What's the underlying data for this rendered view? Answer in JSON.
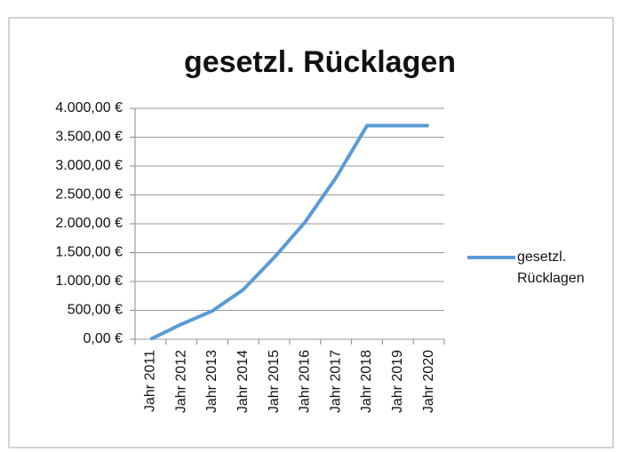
{
  "chart_data": {
    "type": "line",
    "title": "gesetzl. Rücklagen",
    "categories": [
      "Jahr 2011",
      "Jahr 2012",
      "Jahr 2013",
      "Jahr 2014",
      "Jahr 2015",
      "Jahr 2016",
      "Jahr 2017",
      "Jahr 2018",
      "Jahr 2019",
      "Jahr 2020"
    ],
    "series": [
      {
        "name": "gesetzl. Rücklagen",
        "color": "#5b9bd5",
        "values": [
          0,
          260,
          490,
          860,
          1415,
          2030,
          2800,
          3700,
          3700,
          3700
        ]
      }
    ],
    "ylim": [
      0,
      4000
    ],
    "yticks": [
      {
        "value": 0,
        "label": "0,00 €"
      },
      {
        "value": 500,
        "label": "500,00 €"
      },
      {
        "value": 1000,
        "label": "1.000,00 €"
      },
      {
        "value": 1500,
        "label": "1.500,00 €"
      },
      {
        "value": 2000,
        "label": "2.000,00 €"
      },
      {
        "value": 2500,
        "label": "2.500,00 €"
      },
      {
        "value": 3000,
        "label": "3.000,00 €"
      },
      {
        "value": 3500,
        "label": "3.500,00 €"
      },
      {
        "value": 4000,
        "label": "4.000,00 €"
      }
    ],
    "grid": true,
    "legend": "right"
  }
}
